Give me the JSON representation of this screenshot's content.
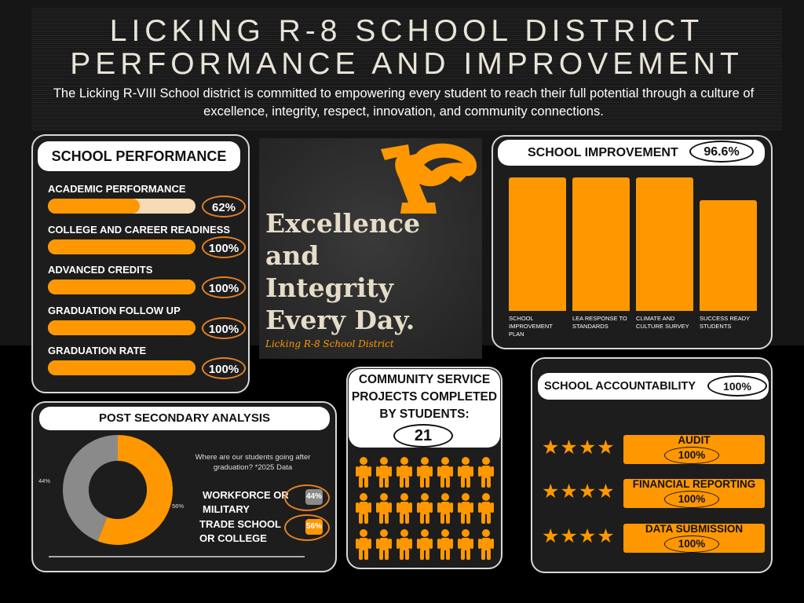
{
  "header": {
    "title_line1": "LICKING R-8 SCHOOL DISTRICT",
    "title_line2": "PERFORMANCE AND IMPROVEMENT",
    "subtitle": "The Licking R-VIII School district is committed to empowering every student to reach their full potential through a culture of excellence, integrity, respect, innovation, and community connections."
  },
  "colors": {
    "accent": "#ff9800",
    "accent_light": "#f7d9b3",
    "gray": "#8a8a8a",
    "background": "#000000"
  },
  "performance": {
    "title": "SCHOOL PERFORMANCE",
    "items": [
      {
        "label": "ACADEMIC PERFORMANCE",
        "value": "62%",
        "fraction": 0.62
      },
      {
        "label": "COLLEGE AND CAREER READINESS",
        "value": "100%",
        "fraction": 1.0
      },
      {
        "label": "ADVANCED CREDITS",
        "value": "100%",
        "fraction": 1.0
      },
      {
        "label": "GRADUATION FOLLOW UP",
        "value": "100%",
        "fraction": 1.0
      },
      {
        "label": "GRADUATION RATE",
        "value": "100%",
        "fraction": 1.0
      }
    ]
  },
  "feature": {
    "logo": "wildcat-logo",
    "motto_line1": "Excellence",
    "motto_line2": "and",
    "motto_line3": "Integrity",
    "motto_line4": "Every Day.",
    "caption": "Licking R-8 School District"
  },
  "improvement": {
    "title": "SCHOOL IMPROVEMENT",
    "value": "96.6%"
  },
  "post_secondary": {
    "title": "POST SECONDARY ANALYSIS",
    "question": "Where are our students going after graduation? *2025 Data",
    "label_left": "44%",
    "label_right": "56%",
    "cat1_line1": "WORKFORCE OR",
    "cat1_line2": "MILITARY",
    "cat1_value": "44%",
    "cat2_line1": "TRADE SCHOOL",
    "cat2_line2": "OR COLLEGE",
    "cat2_value": "56%"
  },
  "community": {
    "title_line1": "COMMUNITY SERVICE",
    "title_line2": "PROJECTS COMPLETED",
    "title_line3": "BY STUDENTS:",
    "value": "21",
    "person_icon": "person-icon",
    "person_count": 21
  },
  "accountability": {
    "title": "SCHOOL ACCOUNTABILITY",
    "value": "100%",
    "rating_stars": 4,
    "items": [
      {
        "label": "AUDIT",
        "value": "100%"
      },
      {
        "label": "FINANCIAL REPORTING",
        "value": "100%"
      },
      {
        "label": "DATA SUBMISSION",
        "value": "100%"
      }
    ]
  },
  "chart_data": [
    {
      "type": "bar",
      "categories": [
        "SCHOOL IMPROVEMENT PLAN",
        "LEA RESPONSE TO STANDARDS",
        "CLIMATE AND CULTURE SURVEY",
        "SUCCESS READY STUDENTS"
      ],
      "values": [
        100,
        100,
        100,
        83
      ],
      "ylim": [
        0,
        100
      ],
      "grid": false,
      "title": "",
      "xlabel": "",
      "ylabel": ""
    },
    {
      "type": "pie",
      "categories": [
        "WORKFORCE OR MILITARY",
        "TRADE SCHOOL OR COLLEGE"
      ],
      "values": [
        44,
        56
      ],
      "labels": [
        "44%",
        "56%"
      ],
      "colors": [
        "#8a8a8a",
        "#ff9800"
      ],
      "title": "",
      "xlabel": "",
      "ylabel": ""
    }
  ]
}
